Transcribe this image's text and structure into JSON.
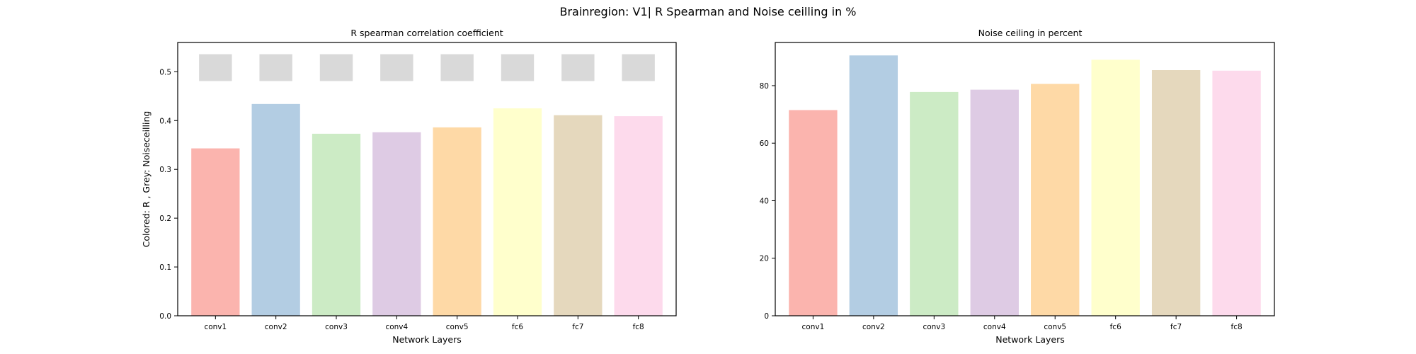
{
  "figure": {
    "suptitle": "Brainregion: V1| R Spearman and Noise ceilling in %"
  },
  "chart_data": [
    {
      "type": "bar",
      "title": "R spearman correlation coefficient",
      "xlabel": "Network Layers",
      "ylabel": "Colored: R , Grey: Noiseceilling",
      "categories": [
        "conv1",
        "conv2",
        "conv3",
        "conv4",
        "conv5",
        "fc6",
        "fc7",
        "fc8"
      ],
      "series": [
        {
          "values": [
            0.343,
            0.434,
            0.373,
            0.376,
            0.386,
            0.425,
            0.411,
            0.409
          ]
        }
      ],
      "noise_ceiling_band": {
        "lower": [
          0.481,
          0.481,
          0.481,
          0.481,
          0.481,
          0.481,
          0.481,
          0.481
        ],
        "upper": [
          0.536,
          0.536,
          0.536,
          0.536,
          0.536,
          0.536,
          0.536,
          0.536
        ],
        "color": "#d9d9d9"
      },
      "ylim": [
        0,
        0.56
      ],
      "yticks": [
        0.0,
        0.1,
        0.2,
        0.3,
        0.4,
        0.5
      ],
      "ytick_labels": [
        "0.0",
        "0.1",
        "0.2",
        "0.3",
        "0.4",
        "0.5"
      ],
      "colors": [
        "#fbb4ae",
        "#b3cde3",
        "#ccebc5",
        "#decbe4",
        "#fed9a6",
        "#ffffcc",
        "#e5d8bd",
        "#fddaec"
      ],
      "grid": false,
      "legend": "none"
    },
    {
      "type": "bar",
      "title": "Noise ceiling in percent",
      "xlabel": "Network Layers",
      "ylabel": "",
      "categories": [
        "conv1",
        "conv2",
        "conv3",
        "conv4",
        "conv5",
        "fc6",
        "fc7",
        "fc8"
      ],
      "series": [
        {
          "values": [
            71.5,
            90.5,
            77.8,
            78.6,
            80.6,
            89.0,
            85.4,
            85.2
          ]
        }
      ],
      "ylim": [
        0,
        95
      ],
      "yticks": [
        0,
        20,
        40,
        60,
        80
      ],
      "ytick_labels": [
        "0",
        "20",
        "40",
        "60",
        "80"
      ],
      "colors": [
        "#fbb4ae",
        "#b3cde3",
        "#ccebc5",
        "#decbe4",
        "#fed9a6",
        "#ffffcc",
        "#e5d8bd",
        "#fddaec"
      ],
      "grid": false,
      "legend": "none"
    }
  ]
}
